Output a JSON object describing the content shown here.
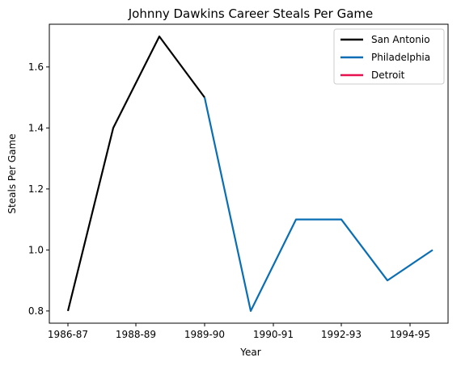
{
  "chart_data": {
    "type": "line",
    "title": "Johnny Dawkins Career Steals Per Game",
    "xlabel": "Year",
    "ylabel": "Steals Per Game",
    "ylim": [
      0.76,
      1.74
    ],
    "x_tick_labels": [
      "1986-87",
      "1988-89",
      "1989-90",
      "1990-91",
      "1992-93",
      "1994-95"
    ],
    "y_ticks": [
      0.8,
      1.0,
      1.2,
      1.4,
      1.6
    ],
    "y_tick_labels": [
      "0.8",
      "1.0",
      "1.2",
      "1.4",
      "1.6"
    ],
    "legend_placement": "top-right",
    "grid": false,
    "series": [
      {
        "name": "San Antonio",
        "color": "#000000",
        "values": [
          0.8,
          1.4,
          1.7,
          1.5
        ]
      },
      {
        "name": "Philadelphia",
        "color": "#0a6eb4",
        "values": [
          1.5,
          0.8,
          1.1,
          1.1,
          0.9,
          1.0
        ]
      },
      {
        "name": "Detroit",
        "color": "#e8114f",
        "values": []
      }
    ]
  }
}
